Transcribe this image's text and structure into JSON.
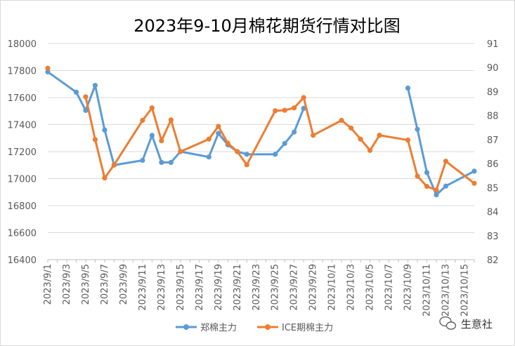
{
  "chart_data": {
    "type": "line",
    "title": "2023年9-10月棉花期货行情对比图",
    "colors": {
      "zheng": "#5b9bd5",
      "ice": "#ed7d31",
      "grid": "#d9d9d9",
      "text": "#595959"
    },
    "y_left": {
      "min": 16400,
      "max": 18000,
      "step": 200,
      "tick_labels": [
        "16400",
        "16600",
        "16800",
        "17000",
        "17200",
        "17400",
        "17600",
        "17800",
        "18000"
      ]
    },
    "y_right": {
      "min": 82,
      "max": 91,
      "step": 1,
      "tick_labels": [
        "82",
        "83",
        "84",
        "85",
        "86",
        "87",
        "88",
        "89",
        "90",
        "91"
      ]
    },
    "x_range": [
      "2023/9/1",
      "2023/10/16"
    ],
    "x_tick_labels": [
      "2023/9/1",
      "2023/9/3",
      "2023/9/5",
      "2023/9/7",
      "2023/9/9",
      "2023/9/11",
      "2023/9/13",
      "2023/9/15",
      "2023/9/17",
      "2023/9/19",
      "2023/9/21",
      "2023/9/23",
      "2023/9/25",
      "2023/9/27",
      "2023/9/29",
      "2023/10/1",
      "2023/10/3",
      "2023/10/5",
      "2023/10/7",
      "2023/10/9",
      "2023/10/11",
      "2023/10/13",
      "2023/10/15"
    ],
    "series": [
      {
        "name": "郑棉主力",
        "axis": "left",
        "color": "#5b9bd5",
        "points": [
          [
            "2023/9/1",
            17790
          ],
          [
            "2023/9/4",
            17640
          ],
          [
            "2023/9/5",
            17505
          ],
          [
            "2023/9/6",
            17690
          ],
          [
            "2023/9/7",
            17360
          ],
          [
            "2023/9/8",
            17100
          ],
          [
            "2023/9/11",
            17135
          ],
          [
            "2023/9/12",
            17320
          ],
          [
            "2023/9/13",
            17120
          ],
          [
            "2023/9/14",
            17120
          ],
          [
            "2023/9/15",
            17200
          ],
          [
            "2023/9/18",
            17160
          ],
          [
            "2023/9/19",
            17335
          ],
          [
            "2023/9/20",
            17250
          ],
          [
            "2023/9/21",
            17200
          ],
          [
            "2023/9/22",
            17180
          ],
          [
            "2023/9/25",
            17180
          ],
          [
            "2023/9/26",
            17260
          ],
          [
            "2023/9/27",
            17345
          ],
          [
            "2023/9/28",
            17520
          ],
          null,
          [
            "2023/10/9",
            17670
          ],
          [
            "2023/10/10",
            17365
          ],
          [
            "2023/10/11",
            17045
          ],
          [
            "2023/10/12",
            16880
          ],
          [
            "2023/10/13",
            16945
          ],
          [
            "2023/10/16",
            17055
          ]
        ]
      },
      {
        "name": "ICE期棉主力",
        "axis": "right",
        "color": "#ed7d31",
        "points": [
          [
            "2023/9/1",
            89.97
          ],
          null,
          [
            "2023/9/5",
            88.78
          ],
          [
            "2023/9/6",
            87.0
          ],
          [
            "2023/9/7",
            85.4
          ],
          [
            "2023/9/8",
            85.95
          ],
          [
            "2023/9/11",
            87.8
          ],
          [
            "2023/9/12",
            88.32
          ],
          [
            "2023/9/13",
            86.95
          ],
          [
            "2023/9/14",
            87.82
          ],
          [
            "2023/9/15",
            86.5
          ],
          [
            "2023/9/18",
            87.02
          ],
          [
            "2023/9/19",
            87.55
          ],
          [
            "2023/9/20",
            86.85
          ],
          [
            "2023/9/21",
            86.5
          ],
          [
            "2023/9/22",
            85.95
          ],
          [
            "2023/9/25",
            88.2
          ],
          [
            "2023/9/26",
            88.22
          ],
          [
            "2023/9/27",
            88.32
          ],
          [
            "2023/9/28",
            88.75
          ],
          [
            "2023/9/29",
            87.18
          ],
          [
            "2023/10/2",
            87.8
          ],
          [
            "2023/10/3",
            87.48
          ],
          [
            "2023/10/4",
            87.02
          ],
          [
            "2023/10/5",
            86.55
          ],
          [
            "2023/10/6",
            87.18
          ],
          [
            "2023/10/9",
            86.98
          ],
          [
            "2023/10/10",
            85.48
          ],
          [
            "2023/10/11",
            85.05
          ],
          [
            "2023/10/12",
            84.9
          ],
          [
            "2023/10/13",
            86.1
          ],
          [
            "2023/10/16",
            85.18
          ]
        ]
      }
    ],
    "legend_position": "bottom",
    "grid": true
  },
  "watermark": {
    "text": "生意社",
    "icon": "wechat-icon"
  }
}
